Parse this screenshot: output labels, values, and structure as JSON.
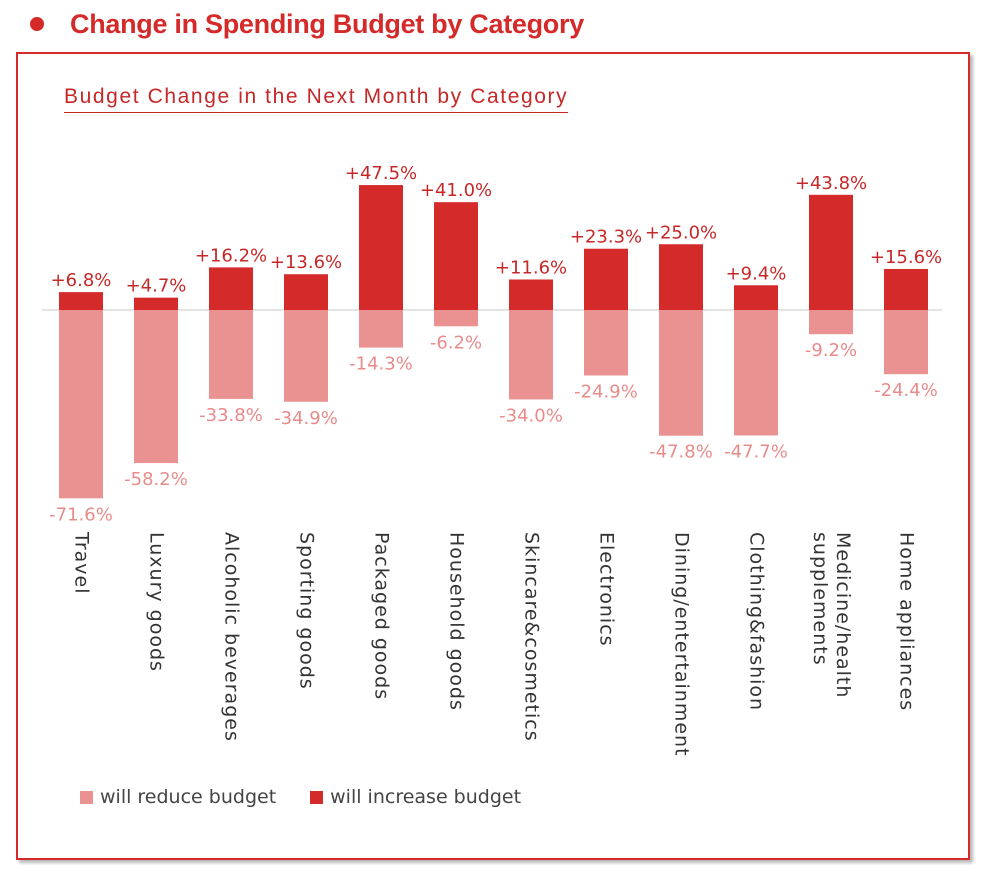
{
  "page": {
    "heading": "Change in Spending Budget by Category"
  },
  "chart_data": {
    "type": "bar",
    "title": "Budget Change in the Next Month by Category",
    "categories": [
      [
        "Travel"
      ],
      [
        "Luxury goods"
      ],
      [
        "Alcoholic beverages"
      ],
      [
        "Sporting goods"
      ],
      [
        "Packaged goods"
      ],
      [
        "Household goods"
      ],
      [
        "Skincare&cosmetics"
      ],
      [
        "Electronics"
      ],
      [
        "Dining/entertainment"
      ],
      [
        "Clothing&fashion"
      ],
      [
        "Medicine/health",
        "supplements"
      ],
      [
        "Home appliances"
      ]
    ],
    "series": [
      {
        "name": "will increase budget",
        "color": "#d42a2a",
        "values": [
          6.8,
          4.7,
          16.2,
          13.6,
          47.5,
          41.0,
          11.6,
          23.3,
          25.0,
          9.4,
          43.8,
          15.6
        ],
        "labels": [
          "+6.8%",
          "+4.7%",
          "+16.2%",
          "+13.6%",
          "+47.5%",
          "+41.0%",
          "+11.6%",
          "+23.3%",
          "+25.0%",
          "+9.4%",
          "+43.8%",
          "+15.6%"
        ]
      },
      {
        "name": "will reduce budget",
        "color": "#ea9292",
        "values": [
          -71.6,
          -58.2,
          -33.8,
          -34.9,
          -14.3,
          -6.2,
          -34.0,
          -24.9,
          -47.8,
          -47.7,
          -9.2,
          -24.4
        ],
        "labels": [
          "-71.6%",
          "-58.2%",
          "-33.8%",
          "-34.9%",
          "-14.3%",
          "-6.2%",
          "-34.0%",
          "-24.9%",
          "-47.8%",
          "-47.7%",
          "-9.2%",
          "-24.4%"
        ]
      }
    ],
    "legend": [
      {
        "label": "will reduce budget",
        "color": "#ea9292"
      },
      {
        "label": "will increase budget",
        "color": "#d42a2a"
      }
    ],
    "ylim": [
      -72,
      48
    ],
    "grid": false
  }
}
